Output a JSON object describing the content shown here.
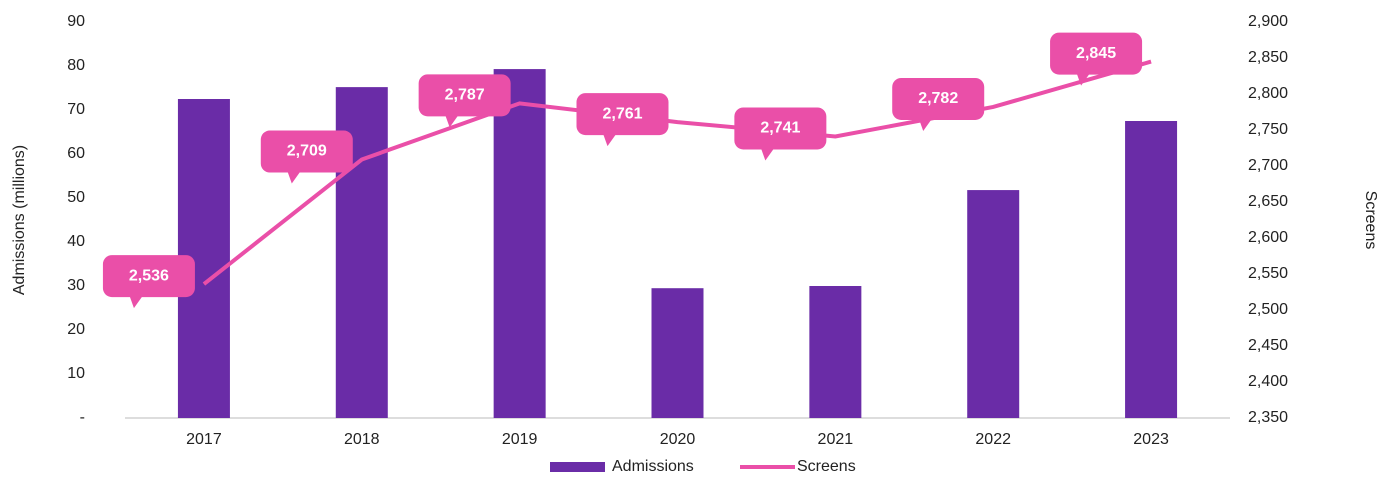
{
  "chart_data": {
    "type": "bar-line",
    "categories": [
      "2017",
      "2018",
      "2019",
      "2020",
      "2021",
      "2022",
      "2023"
    ],
    "series": [
      {
        "name": "Admissions",
        "color": "#6a2ca7",
        "type": "bar",
        "values": [
          72.5,
          75.2,
          79.3,
          29.5,
          30,
          51.8,
          67.5
        ]
      },
      {
        "name": "Screens",
        "color": "#ea4fa8",
        "type": "line",
        "axis": "y2",
        "values": [
          2536,
          2709,
          2787,
          2761,
          2741,
          2782,
          2845
        ],
        "value_labels": [
          "2,536",
          "2,709",
          "2,787",
          "2,761",
          "2,741",
          "2,782",
          "2,845"
        ]
      }
    ],
    "ylabel": "Admissions (millions)",
    "y2label": "Screens",
    "ylim": [
      0,
      90
    ],
    "yticks": [
      {
        "value": 0,
        "label": "-"
      },
      10,
      20,
      30,
      40,
      50,
      60,
      70,
      80,
      90
    ],
    "y2lim": [
      2350,
      2900
    ],
    "y2ticks": [
      {
        "value": 2350,
        "label": "2,350"
      },
      {
        "value": 2400,
        "label": "2,400"
      },
      {
        "value": 2450,
        "label": "2,450"
      },
      {
        "value": 2500,
        "label": "2,500"
      },
      {
        "value": 2550,
        "label": "2,550"
      },
      {
        "value": 2600,
        "label": "2,600"
      },
      {
        "value": 2650,
        "label": "2,650"
      },
      {
        "value": 2700,
        "label": "2,700"
      },
      {
        "value": 2750,
        "label": "2,750"
      },
      {
        "value": 2800,
        "label": "2,800"
      },
      {
        "value": 2850,
        "label": "2,850"
      },
      {
        "value": 2900,
        "label": "2,900"
      }
    ],
    "legend": "bottom"
  }
}
